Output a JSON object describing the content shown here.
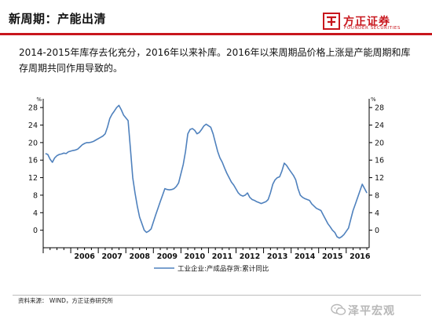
{
  "header": {
    "title": "新周期：产能出清"
  },
  "logo": {
    "name_cn": "方正证券",
    "name_en": "FOUNDER SECURITIES",
    "accent_color": "#c8161d"
  },
  "description": "2014-2015年库存去化充分，2016年以来补库。2016年以来周期品价格上涨是产能周期和库存周期共同作用导致的。",
  "source": "资料来源： WIND，方正证券研究所",
  "watermark": {
    "text": "泽平宏观",
    "icon": "wechat-icon"
  },
  "chart_data": {
    "type": "line",
    "title": "",
    "ylabel_left": "%",
    "ylabel_right": "%",
    "ylim": [
      -4,
      30
    ],
    "yticks": [
      0,
      4,
      8,
      12,
      16,
      20,
      24,
      28
    ],
    "x_tick_labels": [
      "2006",
      "2007",
      "2008",
      "2009",
      "2010",
      "2011",
      "2012",
      "2013",
      "2014",
      "2015",
      "2016"
    ],
    "legend_position": "bottom-left",
    "grid": false,
    "series": [
      {
        "name": "工业企业:产成品存货:累计同比",
        "color": "#4f81bd",
        "x": [
          "2005-02",
          "2005-03",
          "2005-04",
          "2005-05",
          "2005-06",
          "2005-07",
          "2005-08",
          "2005-09",
          "2005-10",
          "2005-11",
          "2005-12",
          "2006-02",
          "2006-03",
          "2006-04",
          "2006-05",
          "2006-06",
          "2006-07",
          "2006-08",
          "2006-09",
          "2006-10",
          "2006-11",
          "2006-12",
          "2007-02",
          "2007-03",
          "2007-04",
          "2007-05",
          "2007-06",
          "2007-07",
          "2007-08",
          "2007-09",
          "2007-10",
          "2007-11",
          "2007-12",
          "2008-02",
          "2008-03",
          "2008-04",
          "2008-05",
          "2008-06",
          "2008-07",
          "2008-08",
          "2008-09",
          "2008-10",
          "2008-11",
          "2008-12",
          "2009-02",
          "2009-03",
          "2009-04",
          "2009-05",
          "2009-06",
          "2009-07",
          "2009-08",
          "2009-09",
          "2009-10",
          "2009-11",
          "2009-12",
          "2010-02",
          "2010-03",
          "2010-04",
          "2010-05",
          "2010-06",
          "2010-07",
          "2010-08",
          "2010-09",
          "2010-10",
          "2010-11",
          "2010-12",
          "2011-02",
          "2011-03",
          "2011-04",
          "2011-05",
          "2011-06",
          "2011-07",
          "2011-08",
          "2011-09",
          "2011-10",
          "2011-11",
          "2011-12",
          "2012-02",
          "2012-03",
          "2012-04",
          "2012-05",
          "2012-06",
          "2012-07",
          "2012-08",
          "2012-09",
          "2012-10",
          "2012-11",
          "2012-12",
          "2013-02",
          "2013-03",
          "2013-04",
          "2013-05",
          "2013-06",
          "2013-07",
          "2013-08",
          "2013-09",
          "2013-10",
          "2013-11",
          "2013-12",
          "2014-02",
          "2014-03",
          "2014-04",
          "2014-05",
          "2014-06",
          "2014-07",
          "2014-08",
          "2014-09",
          "2014-10",
          "2014-11",
          "2014-12",
          "2015-02",
          "2015-03",
          "2015-04",
          "2015-05",
          "2015-06",
          "2015-07",
          "2015-08",
          "2015-09",
          "2015-10",
          "2015-11",
          "2015-12",
          "2016-02",
          "2016-03",
          "2016-04",
          "2016-05",
          "2016-06",
          "2016-07",
          "2016-08",
          "2016-09",
          "2016-10"
        ],
        "values": [
          17.5,
          17.3,
          16.2,
          15.5,
          16.5,
          17.0,
          17.3,
          17.4,
          17.6,
          17.5,
          17.9,
          18.2,
          18.3,
          18.5,
          19.0,
          19.5,
          19.8,
          20.0,
          20.0,
          20.1,
          20.3,
          20.6,
          21.2,
          21.5,
          22.0,
          23.5,
          25.5,
          26.5,
          27.2,
          28.0,
          28.5,
          27.5,
          26.3,
          25.0,
          18.5,
          12.0,
          8.5,
          5.5,
          3.0,
          1.5,
          0.0,
          -0.5,
          -0.2,
          0.3,
          3.5,
          5.0,
          6.5,
          8.0,
          9.5,
          9.3,
          9.2,
          9.3,
          9.5,
          10.0,
          10.8,
          15.0,
          18.0,
          22.0,
          23.0,
          23.2,
          22.8,
          22.0,
          22.3,
          23.0,
          23.8,
          24.2,
          23.5,
          22.0,
          20.0,
          18.0,
          16.5,
          15.5,
          14.2,
          13.0,
          12.0,
          11.0,
          10.3,
          8.5,
          8.0,
          7.8,
          8.0,
          8.5,
          7.5,
          7.0,
          6.8,
          6.5,
          6.3,
          6.1,
          6.5,
          7.0,
          8.5,
          10.5,
          11.5,
          12.0,
          12.2,
          13.5,
          15.3,
          14.8,
          14.0,
          12.5,
          11.5,
          9.5,
          8.0,
          7.5,
          7.2,
          7.0,
          6.8,
          6.0,
          5.5,
          5.0,
          4.5,
          3.5,
          2.5,
          1.5,
          0.8,
          0.0,
          -0.5,
          -1.5,
          -1.8,
          -1.5,
          -1.0,
          0.5,
          2.5,
          4.5,
          6.0,
          7.5,
          9.0,
          10.5,
          9.5,
          8.5
        ]
      }
    ]
  }
}
